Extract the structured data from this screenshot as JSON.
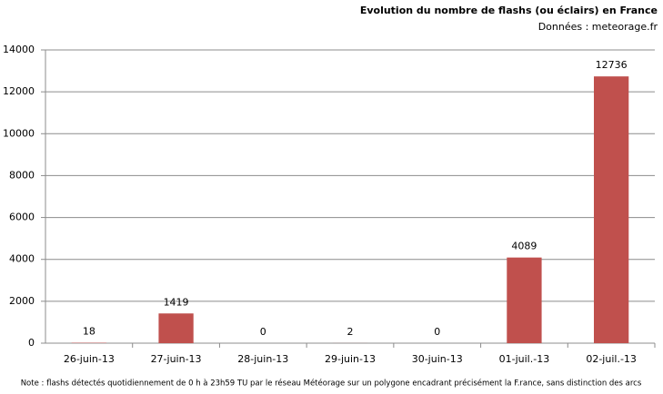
{
  "chart_data": {
    "type": "bar",
    "title": "Evolution du nombre de flashs (ou éclairs)  en France",
    "subtitle": "Données : meteorage.fr",
    "note": "Note : flashs détectés quotidiennement de 0 h à 23h59 TU par le réseau Météorage sur un polygone encadrant précisément la F.rance, sans distinction des arcs",
    "categories": [
      "26-juin-13",
      "27-juin-13",
      "28-juin-13",
      "29-juin-13",
      "30-juin-13",
      "01-juil.-13",
      "02-juil.-13"
    ],
    "values": [
      18,
      1419,
      0,
      2,
      0,
      4089,
      12736
    ],
    "color": "#c0504d",
    "ylim": [
      0,
      14000
    ],
    "yticks": [
      0,
      2000,
      4000,
      6000,
      8000,
      10000,
      12000,
      14000
    ],
    "grid": true,
    "data_labels": true
  }
}
